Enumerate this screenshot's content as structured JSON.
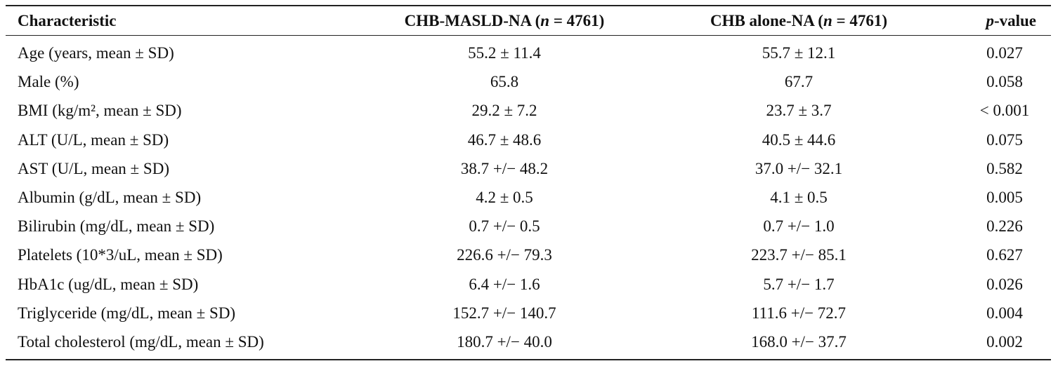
{
  "table": {
    "header": [
      [
        {
          "text": "Characteristic",
          "italic": false
        }
      ],
      [
        {
          "text": "CHB-MASLD-NA (",
          "italic": false
        },
        {
          "text": "n",
          "italic": true
        },
        {
          "text": " = 4761)",
          "italic": false
        }
      ],
      [
        {
          "text": "CHB alone-NA (",
          "italic": false
        },
        {
          "text": "n",
          "italic": true
        },
        {
          "text": " = 4761)",
          "italic": false
        }
      ],
      [
        {
          "text": "p",
          "italic": true
        },
        {
          "text": "-value",
          "italic": false
        }
      ]
    ],
    "rows": [
      [
        "Age (years, mean ± SD)",
        "55.2 ± 11.4",
        "55.7 ± 12.1",
        "0.027"
      ],
      [
        "Male (%)",
        "65.8",
        "67.7",
        "0.058"
      ],
      [
        "BMI (kg/m², mean ± SD)",
        "29.2 ± 7.2",
        "23.7 ± 3.7",
        "< 0.001"
      ],
      [
        "ALT (U/L, mean ± SD)",
        "46.7 ± 48.6",
        "40.5 ± 44.6",
        "0.075"
      ],
      [
        "AST (U/L, mean ± SD)",
        "38.7 +/− 48.2",
        "37.0 +/− 32.1",
        "0.582"
      ],
      [
        "Albumin (g/dL, mean ± SD)",
        "4.2 ± 0.5",
        "4.1 ± 0.5",
        "0.005"
      ],
      [
        "Bilirubin (mg/dL, mean ± SD)",
        "0.7 +/− 0.5",
        "0.7 +/− 1.0",
        "0.226"
      ],
      [
        "Platelets (10*3/uL, mean ± SD)",
        "226.6 +/− 79.3",
        "223.7 +/− 85.1",
        "0.627"
      ],
      [
        "HbA1c (ug/dL, mean ± SD)",
        "6.4 +/− 1.6",
        "5.7 +/− 1.7",
        "0.026"
      ],
      [
        "Triglyceride (mg/dL, mean ± SD)",
        "152.7 +/− 140.7",
        "111.6 +/− 72.7",
        "0.004"
      ],
      [
        "Total cholesterol (mg/dL, mean ± SD)",
        "180.7 +/− 40.0",
        "168.0 +/− 37.7",
        "0.002"
      ]
    ]
  }
}
